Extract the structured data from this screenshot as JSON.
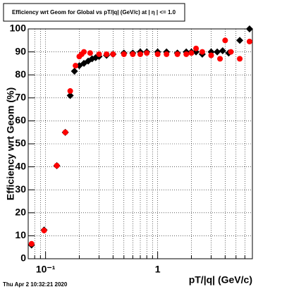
{
  "chart_data": {
    "type": "scatter",
    "title": "Efficiency wrt Geom for Global vs pT/|q| (GeV/c) at | η | <= 1.0",
    "x_label": "pT/|q| (GeV/c)",
    "y_label": "Efficiency wrt Geom (%)",
    "timestamp": "Thu Apr  2 10:32:21 2020",
    "xlim": [
      0.07,
      7
    ],
    "ylim": [
      0,
      100
    ],
    "xscale": "log",
    "xticks": [
      {
        "value": 0.1,
        "label": "10⁻¹"
      },
      1
    ],
    "xminor_ticks": [
      0.08,
      0.09,
      0.2,
      0.3,
      0.4,
      0.5,
      0.6,
      0.7,
      0.8,
      0.9,
      2,
      3,
      4,
      5,
      6,
      7
    ],
    "yticks": [
      0,
      10,
      20,
      30,
      40,
      50,
      60,
      70,
      80,
      90,
      100
    ],
    "grid": true,
    "series": [
      {
        "color": "#000000",
        "marker": "diamond",
        "x": [
          0.075,
          0.097,
          0.126,
          0.15,
          0.166,
          0.181,
          0.2,
          0.22,
          0.24,
          0.26,
          0.28,
          0.3,
          0.35,
          0.4,
          0.5,
          0.6,
          0.7,
          0.8,
          1.0,
          1.2,
          1.5,
          1.8,
          2.0,
          2.2,
          2.5,
          3.0,
          3.4,
          3.8,
          4.3,
          5.4,
          6.6
        ],
        "values": [
          6,
          12.5,
          40.5,
          55,
          71,
          81.6,
          84,
          85,
          86,
          87,
          87.5,
          88,
          88.5,
          89,
          89.5,
          89.5,
          90,
          90,
          90,
          90,
          89.5,
          90,
          90,
          90,
          89,
          90,
          90,
          90.5,
          89.5,
          95,
          100
        ]
      },
      {
        "color": "#ff0000",
        "marker": "circle",
        "x": [
          0.075,
          0.097,
          0.126,
          0.15,
          0.166,
          0.185,
          0.2,
          0.21,
          0.22,
          0.25,
          0.3,
          0.35,
          0.4,
          0.5,
          0.6,
          0.7,
          0.8,
          1.0,
          1.2,
          1.5,
          1.8,
          2.0,
          2.2,
          2.5,
          3.0,
          3.6,
          4.0,
          4.5,
          5.4,
          6.6
        ],
        "values": [
          6.5,
          12.3,
          40.5,
          55,
          73,
          84,
          88,
          89,
          90,
          89.5,
          89,
          89,
          89,
          89,
          89,
          89,
          89.5,
          89,
          89,
          89,
          89,
          89.5,
          91.5,
          90,
          88.5,
          87,
          95,
          90,
          87,
          94.5
        ]
      }
    ]
  }
}
